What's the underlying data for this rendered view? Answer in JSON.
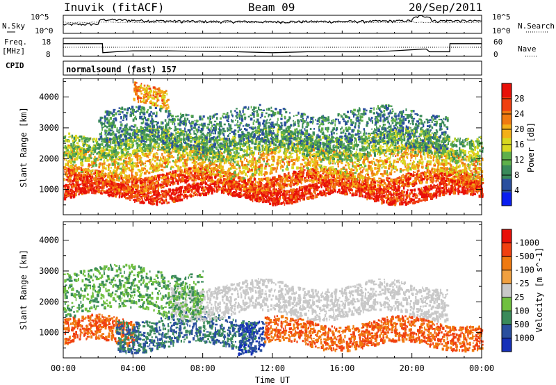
{
  "header": {
    "station": "Inuvik (fitACF)",
    "beam": "Beam 09",
    "date": "20/Sep/2011"
  },
  "top_strip": {
    "left_label": "N.Sky",
    "right_label": "N.Search",
    "y_ticks": [
      "10^5",
      "10^0"
    ]
  },
  "freq_strip": {
    "left_label_line1": "Freq.",
    "left_label_line2": "[MHz]",
    "right_label": "Nave",
    "left_ticks": [
      "18",
      "8"
    ],
    "right_ticks": [
      "60",
      "0"
    ]
  },
  "cpid": {
    "label": "CPID",
    "program": "normalsound (fast) 157"
  },
  "x_axis": {
    "label": "Time UT",
    "ticks": [
      "00:00",
      "04:00",
      "08:00",
      "12:00",
      "16:00",
      "20:00",
      "00:00"
    ]
  },
  "colors": {
    "power": [
      "#0a1ef0",
      "#2a4f9e",
      "#3a8a5a",
      "#5fb04a",
      "#d8d820",
      "#f4b018",
      "#f07a10",
      "#f04010",
      "#e81008"
    ],
    "velocity": [
      "#e81008",
      "#f04010",
      "#f07a10",
      "#f0a040",
      "#c8c8c8",
      "#70c040",
      "#3a8a5a",
      "#2a4f9e",
      "#1530b8"
    ]
  },
  "chart_data": [
    {
      "type": "line",
      "title": "N.Sky / N.Search",
      "xlabel": "Time UT",
      "ylabel": "",
      "yscale": "log",
      "ylim": [
        1,
        100000
      ],
      "series": [
        {
          "name": "N.Sky",
          "x": [
            "00:00",
            "02:00",
            "02:15",
            "04:00",
            "06:00",
            "08:00",
            "10:00",
            "12:00",
            "14:00",
            "16:00",
            "18:00",
            "20:00",
            "20:40",
            "21:10",
            "22:00",
            "24:00"
          ],
          "values": [
            200,
            300,
            5000,
            3000,
            2000,
            1500,
            1500,
            1200,
            1500,
            1500,
            1800,
            2500,
            60000,
            2000,
            2500,
            2000
          ]
        }
      ]
    },
    {
      "type": "line",
      "title": "Freq. / Nave",
      "xlabel": "Time UT",
      "yleft_label": "Freq. [MHz]",
      "yright_label": "Nave",
      "ylim_left": [
        8,
        18
      ],
      "ylim_right": [
        0,
        60
      ],
      "series": [
        {
          "name": "Freq.",
          "x": [
            "00:00",
            "02:15",
            "02:16",
            "03:00",
            "04:00",
            "06:00",
            "10:00",
            "12:00",
            "14:00",
            "18:00",
            "20:40",
            "20:50",
            "21:00",
            "22:10",
            "22:11",
            "24:00"
          ],
          "values": [
            15,
            15,
            10,
            10.5,
            11,
            11,
            10.5,
            10,
            10.5,
            10.5,
            12,
            12,
            10.5,
            10.5,
            15,
            15
          ]
        },
        {
          "name": "Nave",
          "x": [
            "00:00",
            "24:00"
          ],
          "values": [
            30,
            30
          ]
        }
      ]
    },
    {
      "type": "heatmap",
      "title": "Power [dB]",
      "xlabel": "Time UT",
      "ylabel": "Slant Range [km]",
      "xlim": [
        "00:00",
        "24:00"
      ],
      "ylim": [
        180,
        4600
      ],
      "y_ticks": [
        1000,
        2000,
        3000,
        4000
      ],
      "colorbar_label": "Power [dB]",
      "colorbar_ticks": [
        4,
        8,
        12,
        16,
        20,
        24,
        28
      ],
      "colorbar_range": [
        0,
        30
      ],
      "scatter_bands": [
        {
          "t_start": 0.0,
          "t_end": 24.0,
          "range_center": 950,
          "range_width": 220,
          "value": 28
        },
        {
          "t_start": 0.0,
          "t_end": 24.0,
          "range_center": 1350,
          "range_width": 220,
          "value": 24
        },
        {
          "t_start": 0.0,
          "t_end": 24.0,
          "range_center": 1950,
          "range_width": 420,
          "value": 18
        },
        {
          "t_start": 0.0,
          "t_end": 24.0,
          "range_center": 2500,
          "range_width": 380,
          "value": 12
        },
        {
          "t_start": 2.0,
          "t_end": 22.0,
          "range_center": 3000,
          "range_width": 600,
          "value": 8
        },
        {
          "t_start": 4.0,
          "t_end": 6.0,
          "range_center": 4100,
          "range_width": 300,
          "value": 20
        }
      ]
    },
    {
      "type": "heatmap",
      "title": "Velocity [m s^-1]",
      "xlabel": "Time UT",
      "ylabel": "Slant Range [km]",
      "xlim": [
        "00:00",
        "24:00"
      ],
      "ylim": [
        180,
        4600
      ],
      "y_ticks": [
        1000,
        2000,
        3000,
        4000
      ],
      "colorbar_label": "Velocity [m s^-1]",
      "colorbar_ticks": [
        1000,
        500,
        100,
        25,
        -25,
        -100,
        -500,
        -1000
      ],
      "colorbar_range": [
        -1000,
        1000
      ],
      "scatter_bands": [
        {
          "t_start": 0.0,
          "t_end": 4.0,
          "range_center": 1050,
          "range_width": 400,
          "value": -500
        },
        {
          "t_start": 3.0,
          "t_end": 11.0,
          "range_center": 1050,
          "range_width": 500,
          "value": 500
        },
        {
          "t_start": 10.0,
          "t_end": 11.5,
          "range_center": 1000,
          "range_width": 500,
          "value": 1000
        },
        {
          "t_start": 11.5,
          "t_end": 24.0,
          "range_center": 1000,
          "range_width": 400,
          "value": -500
        },
        {
          "t_start": 6.0,
          "t_end": 22.0,
          "range_center": 2100,
          "range_width": 500,
          "value": 0
        },
        {
          "t_start": 0.0,
          "t_end": 8.0,
          "range_center": 2400,
          "range_width": 700,
          "value": 100
        }
      ]
    }
  ]
}
